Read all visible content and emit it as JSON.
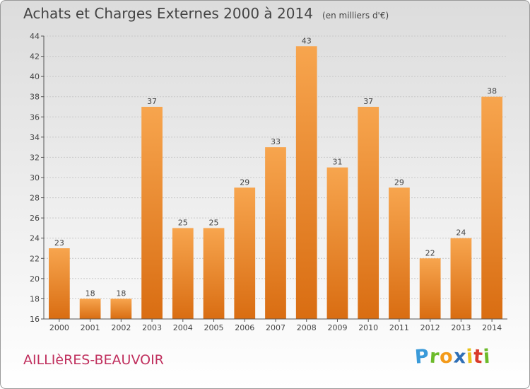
{
  "chart_data": {
    "type": "bar",
    "title": "Achats et Charges Externes 2000 à 2014",
    "subtitle": "(en milliers d'€)",
    "categories": [
      "2000",
      "2001",
      "2002",
      "2003",
      "2004",
      "2005",
      "2006",
      "2007",
      "2008",
      "2009",
      "2010",
      "2011",
      "2012",
      "2013",
      "2014"
    ],
    "values": [
      23,
      18,
      18,
      37,
      25,
      25,
      29,
      33,
      43,
      31,
      37,
      29,
      22,
      24,
      38
    ],
    "ylim": [
      16,
      44
    ],
    "yticks": [
      16,
      18,
      20,
      22,
      24,
      26,
      28,
      30,
      32,
      34,
      36,
      38,
      40,
      42,
      44
    ],
    "grid": true,
    "colors": {
      "bar_top": "#f7a54e",
      "bar_bottom": "#d96d12",
      "text": "#444444"
    }
  },
  "commune": "AILLIèRES-BEAUVOIR",
  "brand": {
    "letters": [
      "P",
      "r",
      "o",
      "x",
      "i",
      "t",
      "i"
    ],
    "colors": [
      "#3a9ad9",
      "#6cba2a",
      "#f39a1a",
      "#2f6fb5",
      "#e8c21a",
      "#d93a2a",
      "#6cba2a"
    ]
  }
}
